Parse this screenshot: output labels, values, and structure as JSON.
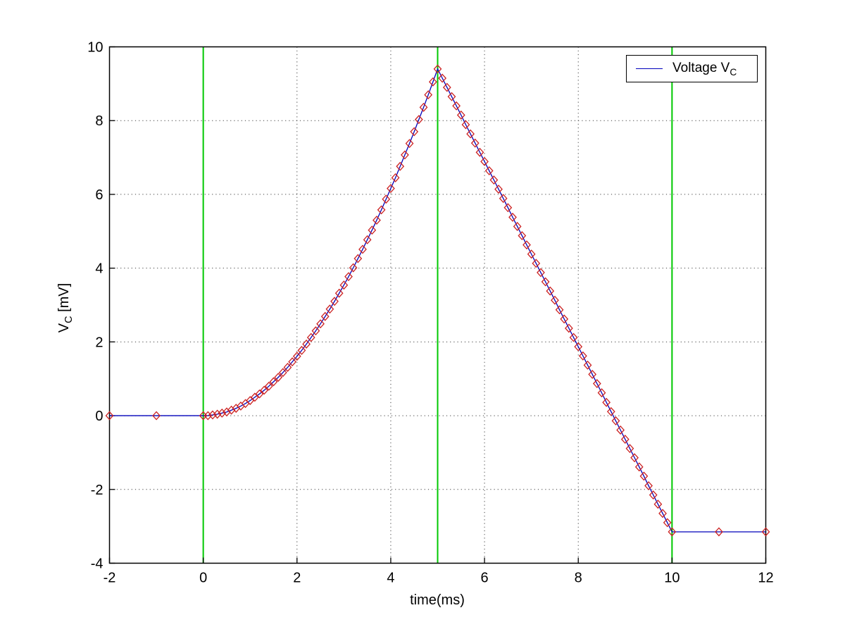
{
  "figure": {
    "background": "#ffffff",
    "frame_color": "#000000",
    "grid_color": "#404040"
  },
  "legend": {
    "label": "Voltage V_C",
    "label_main": "Voltage V",
    "label_sub": "C",
    "position": "top-right"
  },
  "axis_labels": {
    "x": "time(ms)",
    "y_main": "V",
    "y_sub": "C",
    "y_rest": " [mV]"
  },
  "chart_data": {
    "type": "line",
    "title": "",
    "xlabel": "time(ms)",
    "ylabel": "V_C [mV]",
    "xlim": [
      -2,
      12
    ],
    "ylim": [
      -4,
      10
    ],
    "xticks": [
      -2,
      0,
      2,
      4,
      6,
      8,
      10,
      12
    ],
    "yticks": [
      -4,
      -2,
      0,
      2,
      4,
      6,
      8,
      10
    ],
    "grid": "dotted",
    "legend_entries": [
      "Voltage V_C"
    ],
    "event_lines": {
      "color": "#00c800",
      "x": [
        0,
        5,
        10
      ]
    },
    "series": [
      {
        "name": "Voltage V_C",
        "color": "#0000bb",
        "marker": "open-diamond",
        "marker_color": "#cc2222",
        "points": [
          [
            -2,
            0
          ],
          [
            -1,
            0
          ],
          [
            0,
            0
          ],
          [
            0.1,
            0
          ],
          [
            0.2,
            0.02
          ],
          [
            0.3,
            0.04
          ],
          [
            0.4,
            0.07
          ],
          [
            0.5,
            0.1
          ],
          [
            0.6,
            0.15
          ],
          [
            0.7,
            0.2
          ],
          [
            0.8,
            0.26
          ],
          [
            0.9,
            0.33
          ],
          [
            1,
            0.41
          ],
          [
            1.1,
            0.5
          ],
          [
            1.2,
            0.59
          ],
          [
            1.3,
            0.69
          ],
          [
            1.4,
            0.8
          ],
          [
            1.5,
            0.92
          ],
          [
            1.6,
            1.04
          ],
          [
            1.7,
            1.17
          ],
          [
            1.8,
            1.31
          ],
          [
            1.9,
            1.46
          ],
          [
            2,
            1.61
          ],
          [
            2.1,
            1.77
          ],
          [
            2.2,
            1.94
          ],
          [
            2.3,
            2.12
          ],
          [
            2.4,
            2.3
          ],
          [
            2.5,
            2.49
          ],
          [
            2.6,
            2.69
          ],
          [
            2.7,
            2.89
          ],
          [
            2.8,
            3.1
          ],
          [
            2.9,
            3.32
          ],
          [
            3,
            3.54
          ],
          [
            3.1,
            3.77
          ],
          [
            3.2,
            4.01
          ],
          [
            3.3,
            4.26
          ],
          [
            3.4,
            4.51
          ],
          [
            3.5,
            4.77
          ],
          [
            3.6,
            5.03
          ],
          [
            3.7,
            5.3
          ],
          [
            3.8,
            5.58
          ],
          [
            3.9,
            5.87
          ],
          [
            4,
            6.16
          ],
          [
            4.1,
            6.45
          ],
          [
            4.2,
            6.76
          ],
          [
            4.3,
            7.07
          ],
          [
            4.4,
            7.38
          ],
          [
            4.5,
            7.7
          ],
          [
            4.6,
            8.03
          ],
          [
            4.7,
            8.36
          ],
          [
            4.8,
            8.7
          ],
          [
            4.9,
            9.05
          ],
          [
            5,
            9.4
          ],
          [
            5.1,
            9.15
          ],
          [
            5.2,
            8.9
          ],
          [
            5.3,
            8.65
          ],
          [
            5.4,
            8.4
          ],
          [
            5.5,
            8.15
          ],
          [
            5.6,
            7.89
          ],
          [
            5.7,
            7.64
          ],
          [
            5.8,
            7.39
          ],
          [
            5.9,
            7.14
          ],
          [
            6,
            6.89
          ],
          [
            6.1,
            6.64
          ],
          [
            6.2,
            6.39
          ],
          [
            6.3,
            6.14
          ],
          [
            6.4,
            5.89
          ],
          [
            6.5,
            5.64
          ],
          [
            6.6,
            5.38
          ],
          [
            6.7,
            5.13
          ],
          [
            6.8,
            4.88
          ],
          [
            6.9,
            4.63
          ],
          [
            7,
            4.38
          ],
          [
            7.1,
            4.13
          ],
          [
            7.2,
            3.88
          ],
          [
            7.3,
            3.63
          ],
          [
            7.4,
            3.38
          ],
          [
            7.5,
            3.13
          ],
          [
            7.6,
            2.87
          ],
          [
            7.7,
            2.62
          ],
          [
            7.8,
            2.37
          ],
          [
            7.9,
            2.12
          ],
          [
            8,
            1.87
          ],
          [
            8.1,
            1.62
          ],
          [
            8.2,
            1.37
          ],
          [
            8.3,
            1.12
          ],
          [
            8.4,
            0.87
          ],
          [
            8.5,
            0.62
          ],
          [
            8.6,
            0.36
          ],
          [
            8.7,
            0.11
          ],
          [
            8.8,
            -0.14
          ],
          [
            8.9,
            -0.39
          ],
          [
            9,
            -0.64
          ],
          [
            9.1,
            -0.89
          ],
          [
            9.2,
            -1.14
          ],
          [
            9.3,
            -1.39
          ],
          [
            9.4,
            -1.64
          ],
          [
            9.5,
            -1.9
          ],
          [
            9.6,
            -2.15
          ],
          [
            9.7,
            -2.4
          ],
          [
            9.8,
            -2.65
          ],
          [
            9.9,
            -2.9
          ],
          [
            10,
            -3.15
          ],
          [
            11,
            -3.15
          ],
          [
            12,
            -3.15
          ]
        ]
      }
    ]
  }
}
